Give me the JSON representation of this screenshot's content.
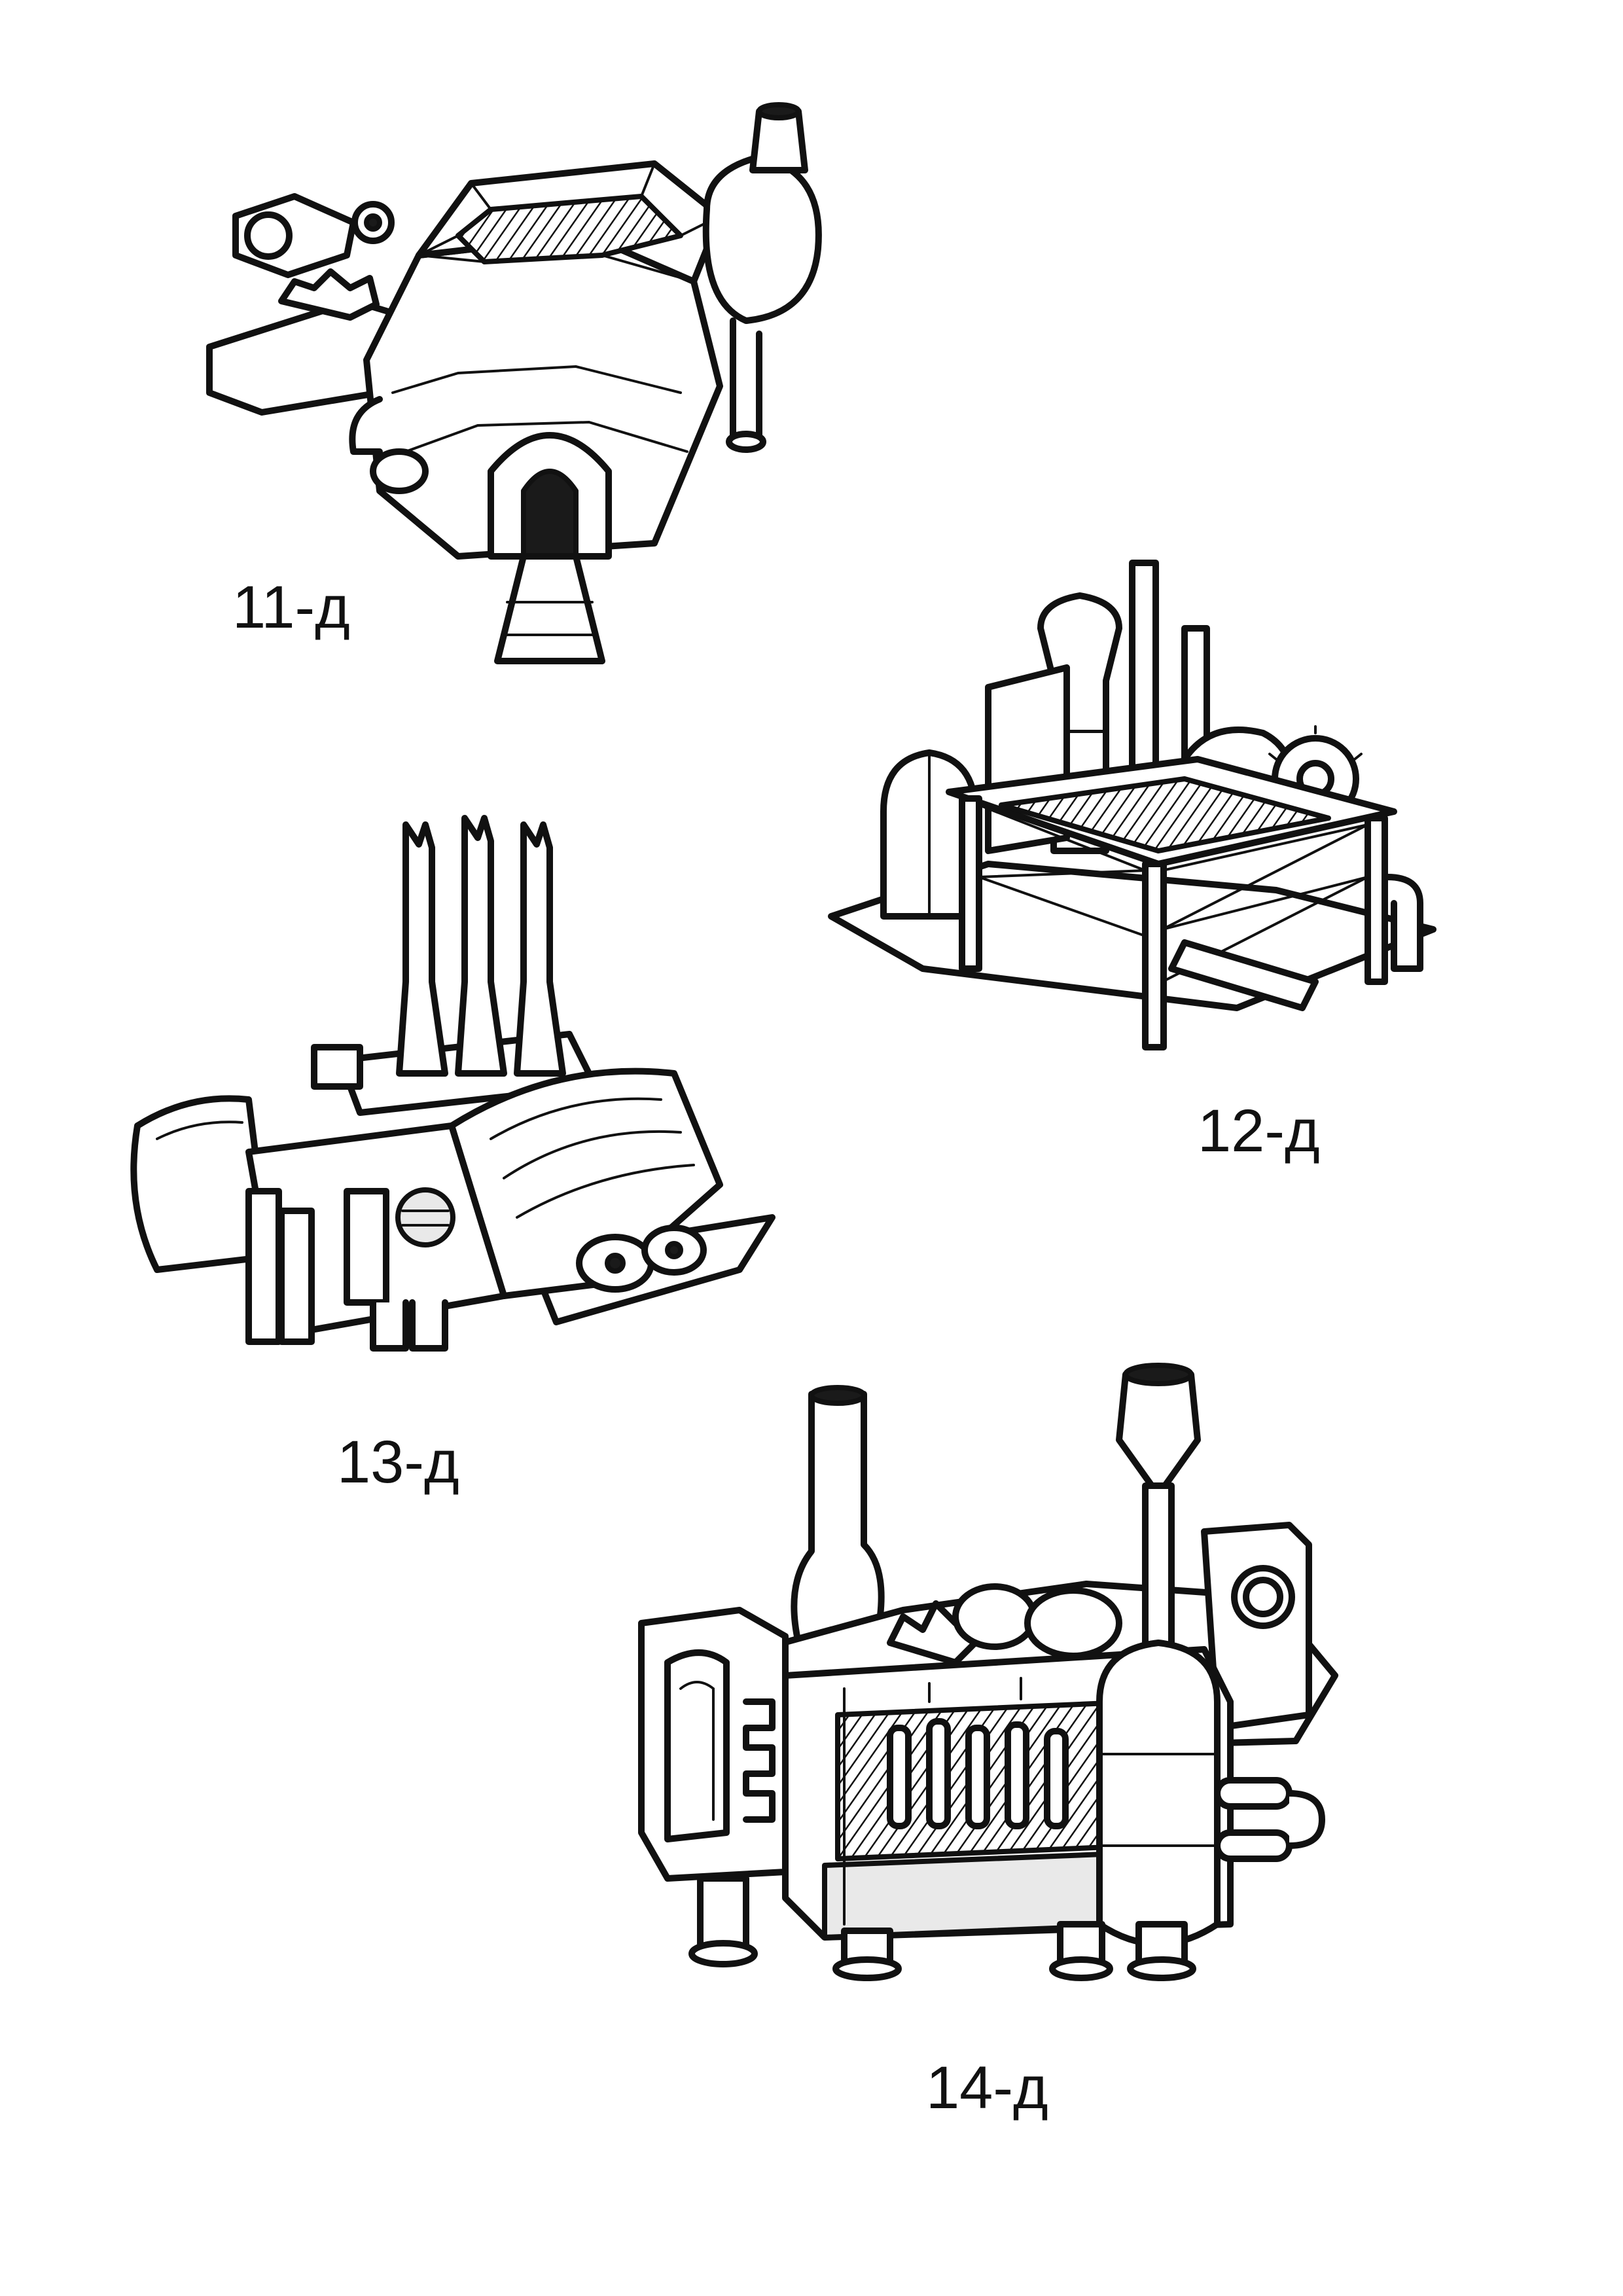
{
  "colors": {
    "paper": "#ffffff",
    "ink": "#111111",
    "shade": "#e9e9e9"
  },
  "sketches": [
    {
      "label": "11-д",
      "depicts": "domed-furnace-building"
    },
    {
      "label": "12-д",
      "depicts": "scaffold-factory-with-gear"
    },
    {
      "label": "13-д",
      "depicts": "triple-chimney-hall"
    },
    {
      "label": "14-д",
      "depicts": "boiler-engine-house"
    }
  ]
}
